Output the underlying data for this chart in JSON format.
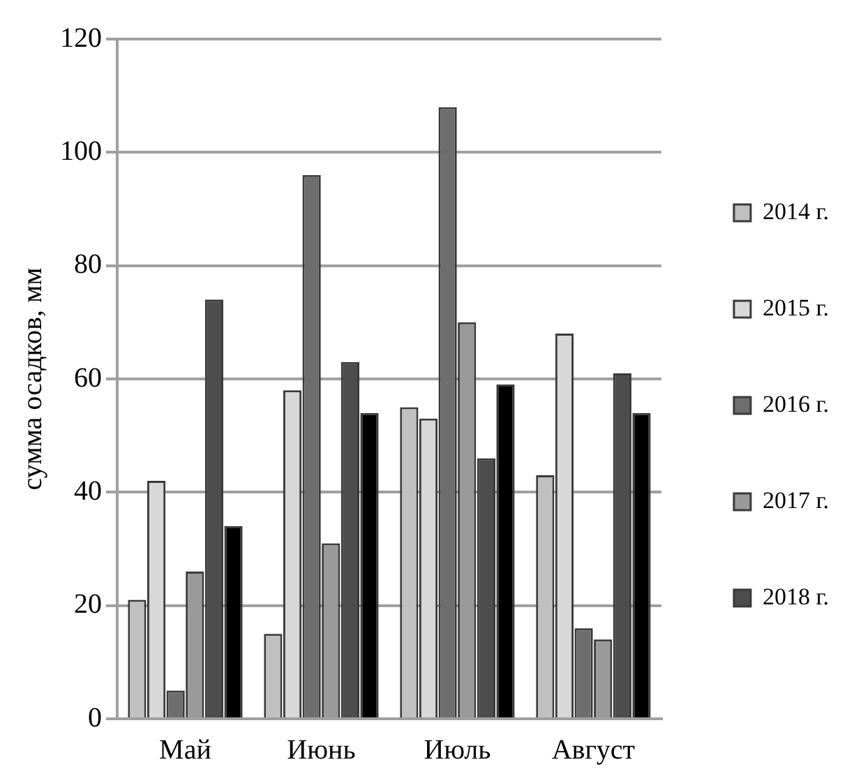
{
  "chart_data": {
    "type": "bar",
    "ylabel": "сумма осадков, мм",
    "categories": [
      "Май",
      "Июнь",
      "Июль",
      "Август"
    ],
    "series": [
      {
        "name": "2014 г.",
        "color": "#c0c0c0",
        "values": [
          21,
          15,
          55,
          43
        ]
      },
      {
        "name": "2015 г.",
        "color": "#d8d8d8",
        "values": [
          42,
          58,
          53,
          68
        ]
      },
      {
        "name": "2016 г.",
        "color": "#6e6e6e",
        "values": [
          5,
          96,
          108,
          16
        ]
      },
      {
        "name": "2017 г.",
        "color": "#9a9a9a",
        "values": [
          26,
          31,
          70,
          14
        ]
      },
      {
        "name": "2018 г.",
        "color": "#4d4d4d",
        "values": [
          74,
          63,
          46,
          61
        ]
      },
      {
        "color": "#000000",
        "values": [
          34,
          54,
          59,
          54
        ]
      }
    ],
    "ylim": [
      0,
      120
    ],
    "yticks": [
      0,
      20,
      40,
      60,
      80,
      100,
      120
    ],
    "grid": "y",
    "legend": "right"
  }
}
